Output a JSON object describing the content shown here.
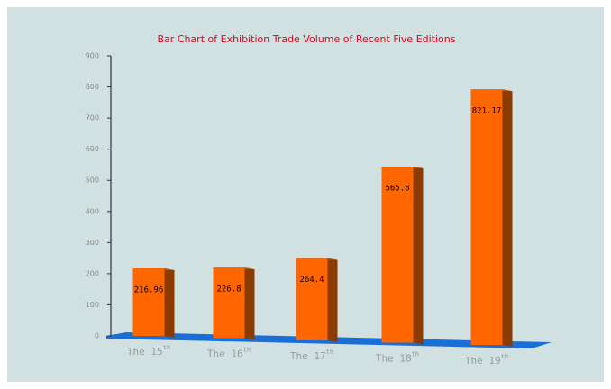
{
  "chart_data": {
    "type": "bar3d",
    "title": "Bar Chart of Exhibition  Trade Volume of Recent Five Editions",
    "categories": [
      "The 15th",
      "The 16th",
      "The 17th",
      "The 18th",
      "The 19th"
    ],
    "values": [
      216.96,
      226.8,
      264.4,
      565.8,
      821.17
    ],
    "color": "#ff6600",
    "side_color": "#8b3a00",
    "floor_color": "#1a6fd6",
    "title_color": "#e8001c",
    "ylim": [
      0,
      900
    ],
    "yticks": [
      0,
      100,
      200,
      300,
      400,
      500,
      600,
      700,
      800,
      900
    ]
  }
}
